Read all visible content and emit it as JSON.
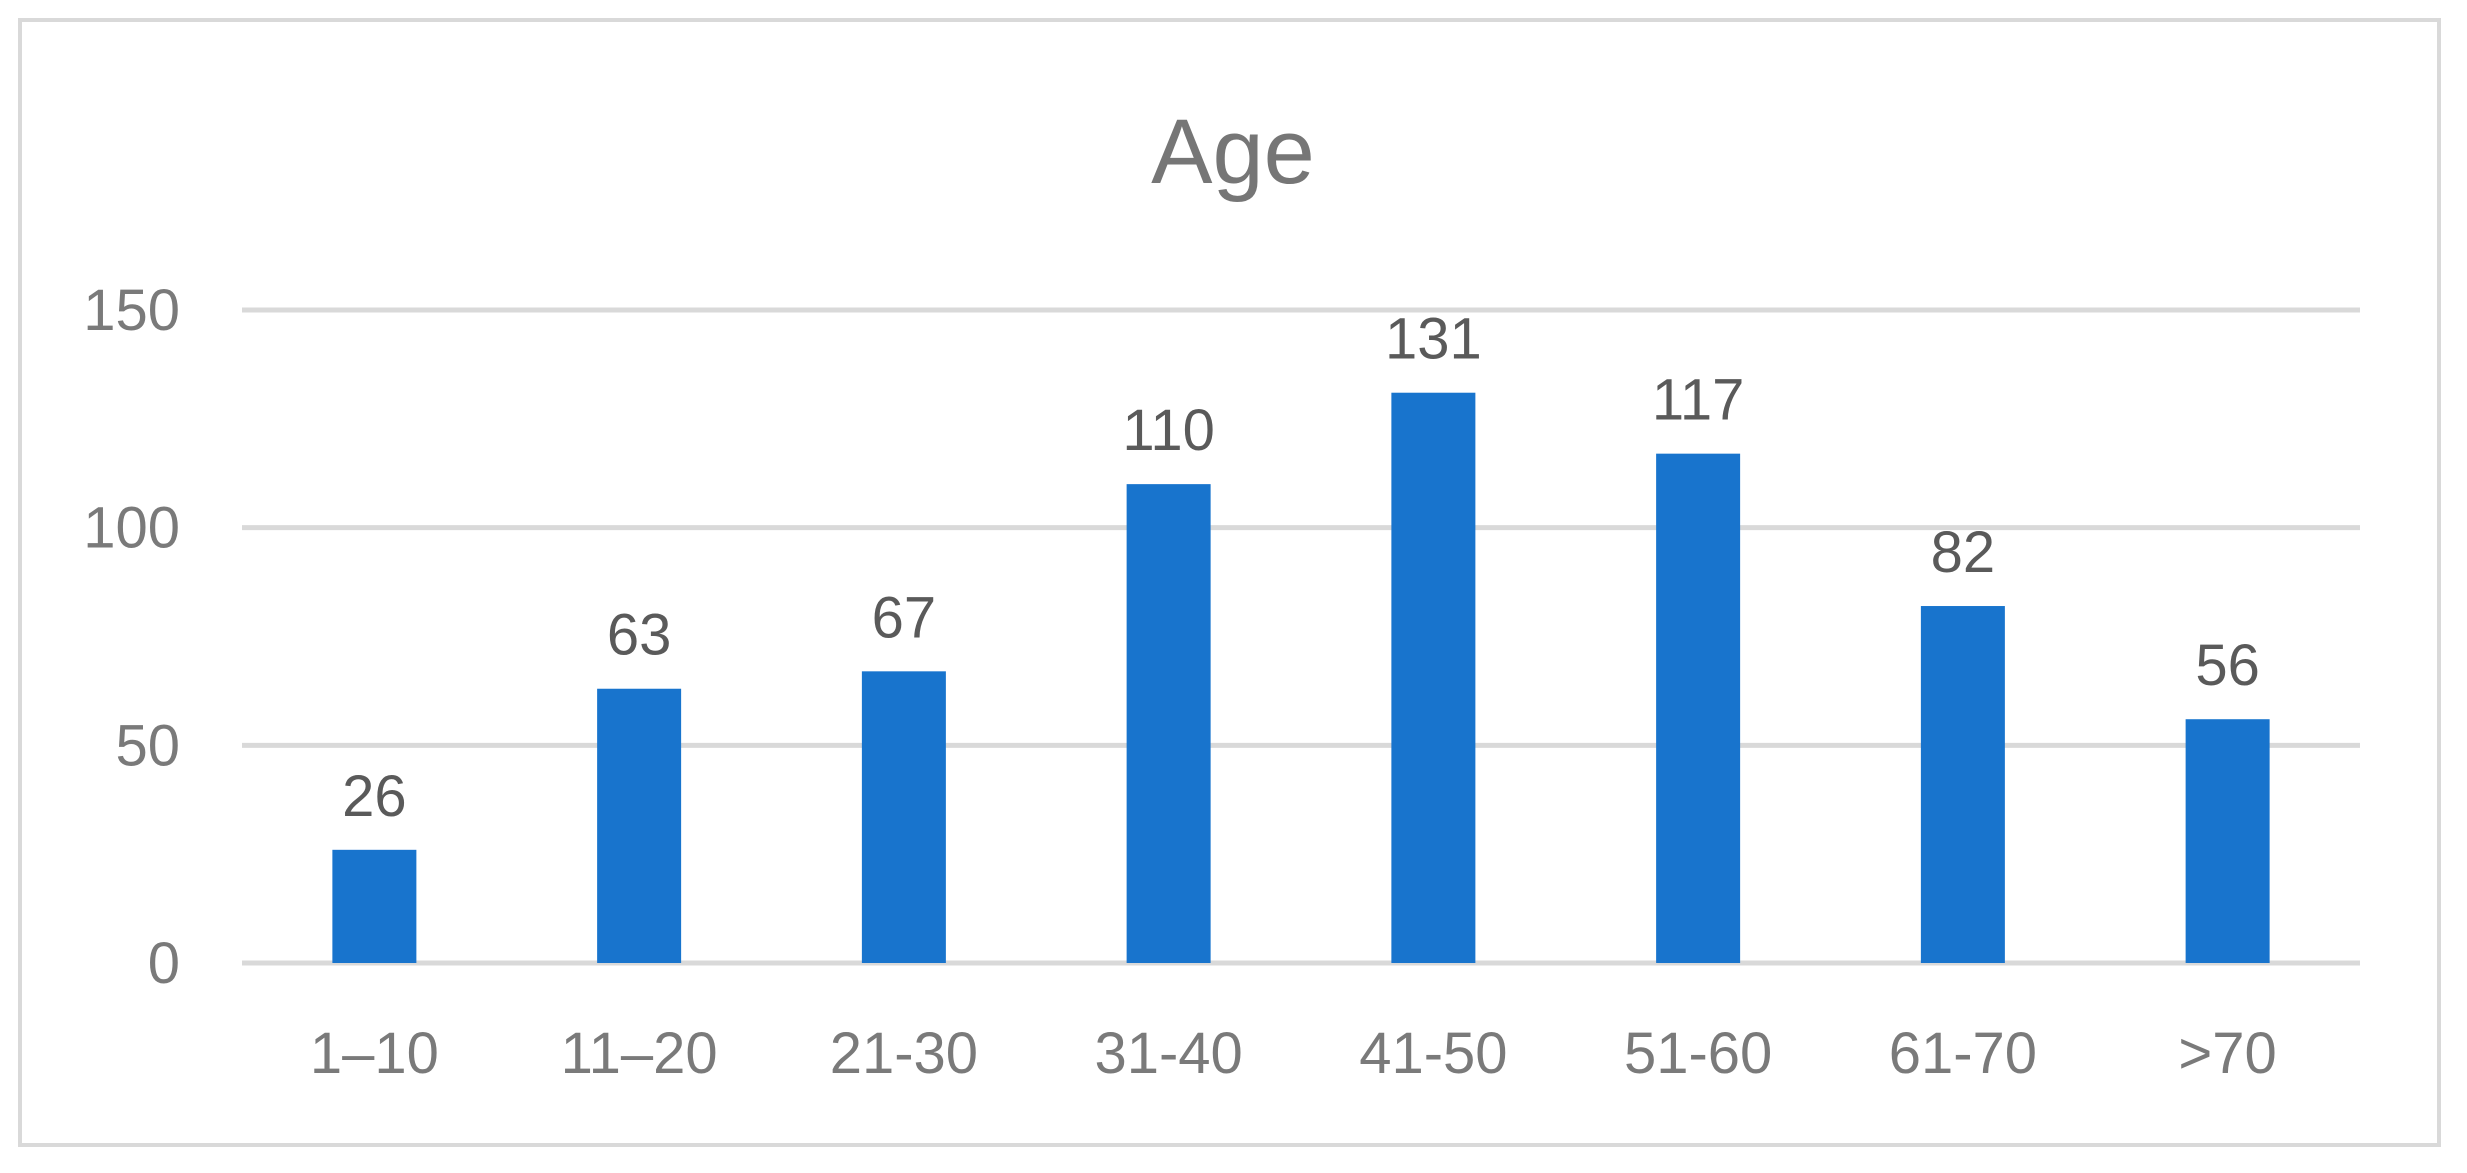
{
  "chart_data": {
    "type": "bar",
    "title": "Age",
    "xlabel": "",
    "ylabel": "",
    "categories": [
      "1–10",
      "11–20",
      "21-30",
      "31-40",
      "41-50",
      "51-60",
      "61-70",
      ">70"
    ],
    "values": [
      26,
      63,
      67,
      110,
      131,
      117,
      82,
      56
    ],
    "yticks": [
      "0",
      "50",
      "100",
      "150"
    ],
    "ylim": [
      0,
      150
    ],
    "grid": true,
    "legend": "none",
    "colors": {
      "bar": "#1874cd",
      "gridline": "#d9d9d9",
      "title": "#767676",
      "tick_label": "#7a7a7a",
      "data_label": "#5a5a5a",
      "frame": "#d9d9d9"
    }
  }
}
